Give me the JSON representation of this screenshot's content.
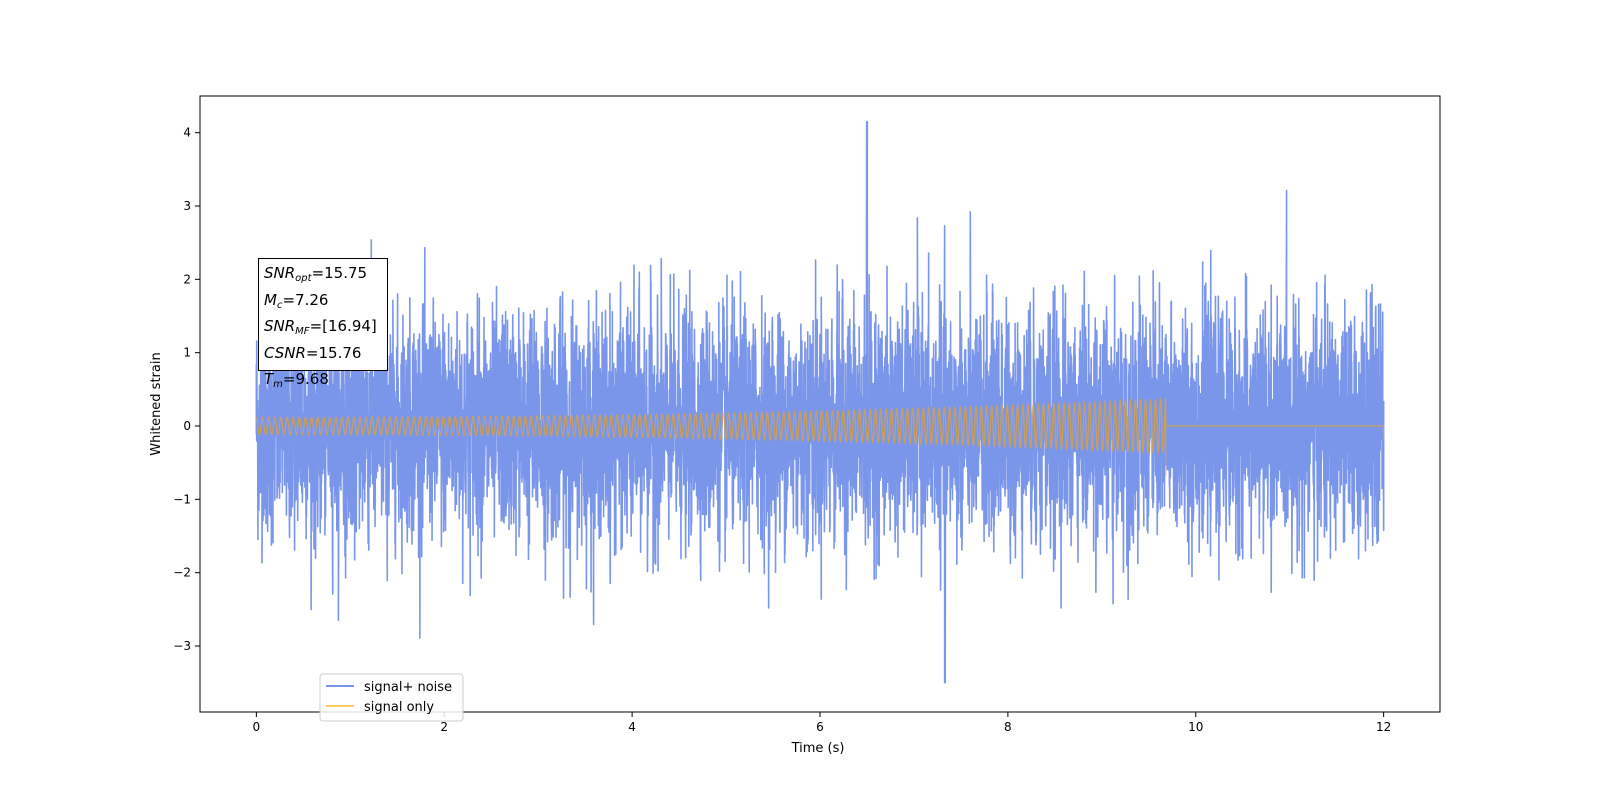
{
  "chart_data": {
    "type": "line",
    "title": "",
    "xlabel": "Time (s)",
    "ylabel": "Whitened strain",
    "xlim": [
      -0.6,
      12.6
    ],
    "ylim": [
      -3.9,
      4.5
    ],
    "x_ticks": [
      0,
      2,
      4,
      6,
      8,
      10,
      12
    ],
    "y_ticks": [
      -3,
      -2,
      -1,
      0,
      1,
      2,
      3,
      4
    ],
    "x_tick_labels": [
      "0",
      "2",
      "4",
      "6",
      "8",
      "10",
      "12"
    ],
    "y_tick_labels": [
      "−3",
      "−2",
      "−1",
      "0",
      "1",
      "2",
      "3",
      "4"
    ],
    "grid": false,
    "legend_position": "lower-left",
    "series": [
      {
        "name": "signal+ noise",
        "color": "#4169e1",
        "opacity": 0.7,
        "description_values": {
          "x_start": 0,
          "x_end": 12,
          "noise_std": 0.75,
          "max": 4.15,
          "max_at": 6.5,
          "min": -3.5,
          "min_at": 7.33
        }
      },
      {
        "name": "signal only",
        "color": "#ffa500",
        "opacity": 0.6,
        "description_values": {
          "x_start": 0,
          "x_end": 9.68,
          "amplitude_start": 0.12,
          "amplitude_end": 0.37,
          "merger_dip": -0.68,
          "after_merger": 0,
          "final_dip_at_12": -0.18
        }
      }
    ],
    "annotation": {
      "lines": [
        {
          "base": "SNR",
          "sub": "opt",
          "value": "=15.75"
        },
        {
          "base": "M",
          "sub": "c",
          "value": "=7.26"
        },
        {
          "base": "SNR",
          "sub": "MF",
          "value": "=[16.94]"
        },
        {
          "base": "CSNR",
          "sub": "",
          "value": "=15.76"
        },
        {
          "base": "T",
          "sub": "m",
          "value": "=9.68"
        }
      ]
    }
  }
}
